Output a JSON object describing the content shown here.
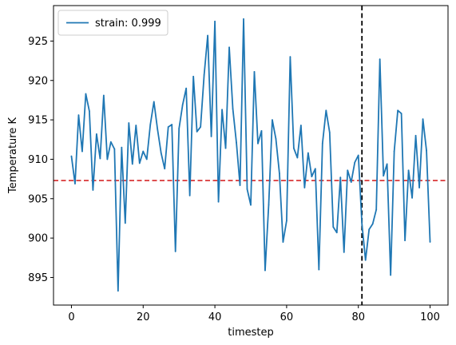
{
  "chart_data": {
    "type": "line",
    "title": "",
    "xlabel": "timestep",
    "ylabel": "Temperature K",
    "xlim": [
      -5,
      105
    ],
    "ylim": [
      891.5,
      929.5
    ],
    "xticks": [
      0,
      20,
      40,
      60,
      80,
      100
    ],
    "yticks": [
      895,
      900,
      905,
      910,
      915,
      920,
      925
    ],
    "grid": false,
    "legend_position": "top-left",
    "series": [
      {
        "name": "strain: 0.999",
        "color": "#1f77b4",
        "x": [
          0,
          1,
          2,
          3,
          4,
          5,
          6,
          7,
          8,
          9,
          10,
          11,
          12,
          13,
          14,
          15,
          16,
          17,
          18,
          19,
          20,
          21,
          22,
          23,
          24,
          25,
          26,
          27,
          28,
          29,
          30,
          31,
          32,
          33,
          34,
          35,
          36,
          37,
          38,
          39,
          40,
          41,
          42,
          43,
          44,
          45,
          46,
          47,
          48,
          49,
          50,
          51,
          52,
          53,
          54,
          55,
          56,
          57,
          58,
          59,
          60,
          61,
          62,
          63,
          64,
          65,
          66,
          67,
          68,
          69,
          70,
          71,
          72,
          73,
          74,
          75,
          76,
          77,
          78,
          79,
          80,
          81,
          82,
          83,
          84,
          85,
          86,
          87,
          88,
          89,
          90,
          91,
          92,
          93,
          94,
          95,
          96,
          97,
          98,
          99,
          100
        ],
        "values": [
          910.4,
          906.9,
          915.6,
          911.0,
          918.3,
          916.1,
          906.1,
          913.2,
          910.1,
          918.1,
          910.0,
          912.2,
          911.3,
          893.3,
          911.5,
          901.9,
          914.6,
          909.4,
          914.3,
          909.5,
          911.0,
          910.0,
          914.4,
          917.3,
          913.8,
          910.8,
          908.8,
          914.1,
          914.4,
          898.3,
          913.9,
          916.9,
          919.0,
          905.4,
          920.5,
          913.5,
          914.1,
          920.7,
          925.7,
          912.9,
          927.5,
          904.6,
          916.3,
          911.4,
          924.2,
          916.4,
          912.1,
          906.7,
          927.8,
          906.2,
          904.2,
          921.1,
          912.0,
          913.6,
          895.9,
          904.2,
          915.0,
          912.6,
          908.2,
          899.5,
          902.2,
          923.0,
          911.4,
          910.2,
          914.3,
          906.4,
          910.8,
          907.8,
          908.8,
          896.0,
          912.0,
          916.2,
          913.4,
          901.4,
          900.7,
          907.7,
          898.2,
          908.6,
          907.1,
          909.6,
          910.5,
          901.8,
          897.2,
          901.1,
          901.8,
          903.6,
          922.7,
          907.9,
          909.4,
          895.3,
          911.0,
          916.2,
          915.8,
          899.7,
          908.6,
          905.1,
          913.0,
          906.4,
          915.1,
          911.1,
          899.5
        ]
      }
    ],
    "reference_lines": [
      {
        "orientation": "horizontal",
        "value": 907.3,
        "color": "#d62728",
        "style": "dashed"
      },
      {
        "orientation": "vertical",
        "value": 81,
        "color": "#000000",
        "style": "dashed"
      }
    ]
  }
}
